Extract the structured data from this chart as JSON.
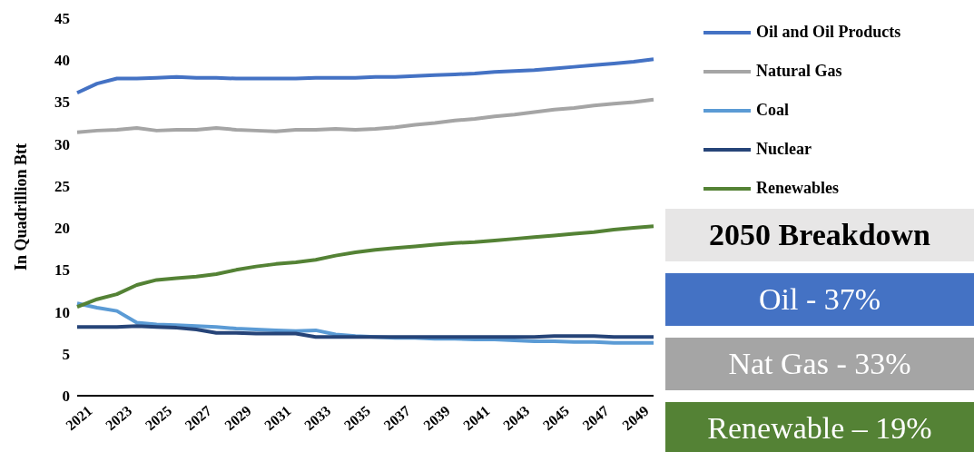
{
  "chart_data": [
    {
      "type": "line",
      "ylabel": "In Quadrillion Btt",
      "categories": [
        "2021",
        null,
        "2023",
        null,
        "2025",
        null,
        "2027",
        null,
        "2029",
        null,
        "2031",
        null,
        "2033",
        null,
        "2035",
        null,
        "2037",
        null,
        "2039",
        null,
        "2041",
        null,
        "2043",
        null,
        "2045",
        null,
        "2047",
        null,
        "2049",
        null
      ],
      "series": [
        {
          "name": "Oil and Oil Products",
          "color": "#4472c4",
          "values": [
            36.1,
            37.2,
            37.8,
            37.8,
            37.9,
            38.0,
            37.9,
            37.9,
            37.8,
            37.8,
            37.8,
            37.8,
            37.9,
            37.9,
            37.9,
            38.0,
            38.0,
            38.1,
            38.2,
            38.3,
            38.4,
            38.6,
            38.7,
            38.8,
            39.0,
            39.2,
            39.4,
            39.6,
            39.8,
            40.1
          ]
        },
        {
          "name": "Natural Gas",
          "color": "#a5a5a5",
          "values": [
            31.4,
            31.6,
            31.7,
            31.9,
            31.6,
            31.7,
            31.7,
            31.9,
            31.7,
            31.6,
            31.5,
            31.7,
            31.7,
            31.8,
            31.7,
            31.8,
            32.0,
            32.3,
            32.5,
            32.8,
            33.0,
            33.3,
            33.5,
            33.8,
            34.1,
            34.3,
            34.6,
            34.8,
            35.0,
            35.3
          ]
        },
        {
          "name": "Coal",
          "color": "#5b9bd5",
          "values": [
            11.0,
            10.5,
            10.1,
            8.7,
            8.5,
            8.4,
            8.3,
            8.2,
            8.0,
            7.9,
            7.8,
            7.7,
            7.8,
            7.3,
            7.1,
            7.0,
            6.9,
            6.9,
            6.8,
            6.8,
            6.7,
            6.7,
            6.6,
            6.5,
            6.5,
            6.4,
            6.4,
            6.3,
            6.3,
            6.3
          ]
        },
        {
          "name": "Nuclear",
          "color": "#264478",
          "values": [
            8.2,
            8.2,
            8.2,
            8.3,
            8.2,
            8.1,
            7.9,
            7.5,
            7.5,
            7.4,
            7.4,
            7.4,
            7.0,
            7.0,
            7.0,
            7.0,
            7.0,
            7.0,
            7.0,
            7.0,
            7.0,
            7.0,
            7.0,
            7.0,
            7.1,
            7.1,
            7.1,
            7.0,
            7.0,
            7.0
          ]
        },
        {
          "name": "Renewables",
          "color": "#548235",
          "values": [
            10.6,
            11.5,
            12.1,
            13.2,
            13.8,
            14.0,
            14.2,
            14.5,
            15.0,
            15.4,
            15.7,
            15.9,
            16.2,
            16.7,
            17.1,
            17.4,
            17.6,
            17.8,
            18.0,
            18.2,
            18.3,
            18.5,
            18.7,
            18.9,
            19.1,
            19.3,
            19.5,
            19.8,
            20.0,
            20.2
          ]
        }
      ],
      "ylim": [
        0,
        45
      ],
      "yticks": [
        0,
        5,
        10,
        15,
        20,
        25,
        30,
        35,
        40,
        45
      ],
      "legend": "top right",
      "marker": "none",
      "line_style": "solid"
    },
    {
      "type": "other",
      "title": "2050 Breakdown",
      "annotations": [
        "Oil - 37%",
        "Nat Gas - 33%",
        "Renewable – 19%"
      ],
      "colors": [
        "#4472c4",
        "#a5a5a5",
        "#548235"
      ]
    }
  ]
}
